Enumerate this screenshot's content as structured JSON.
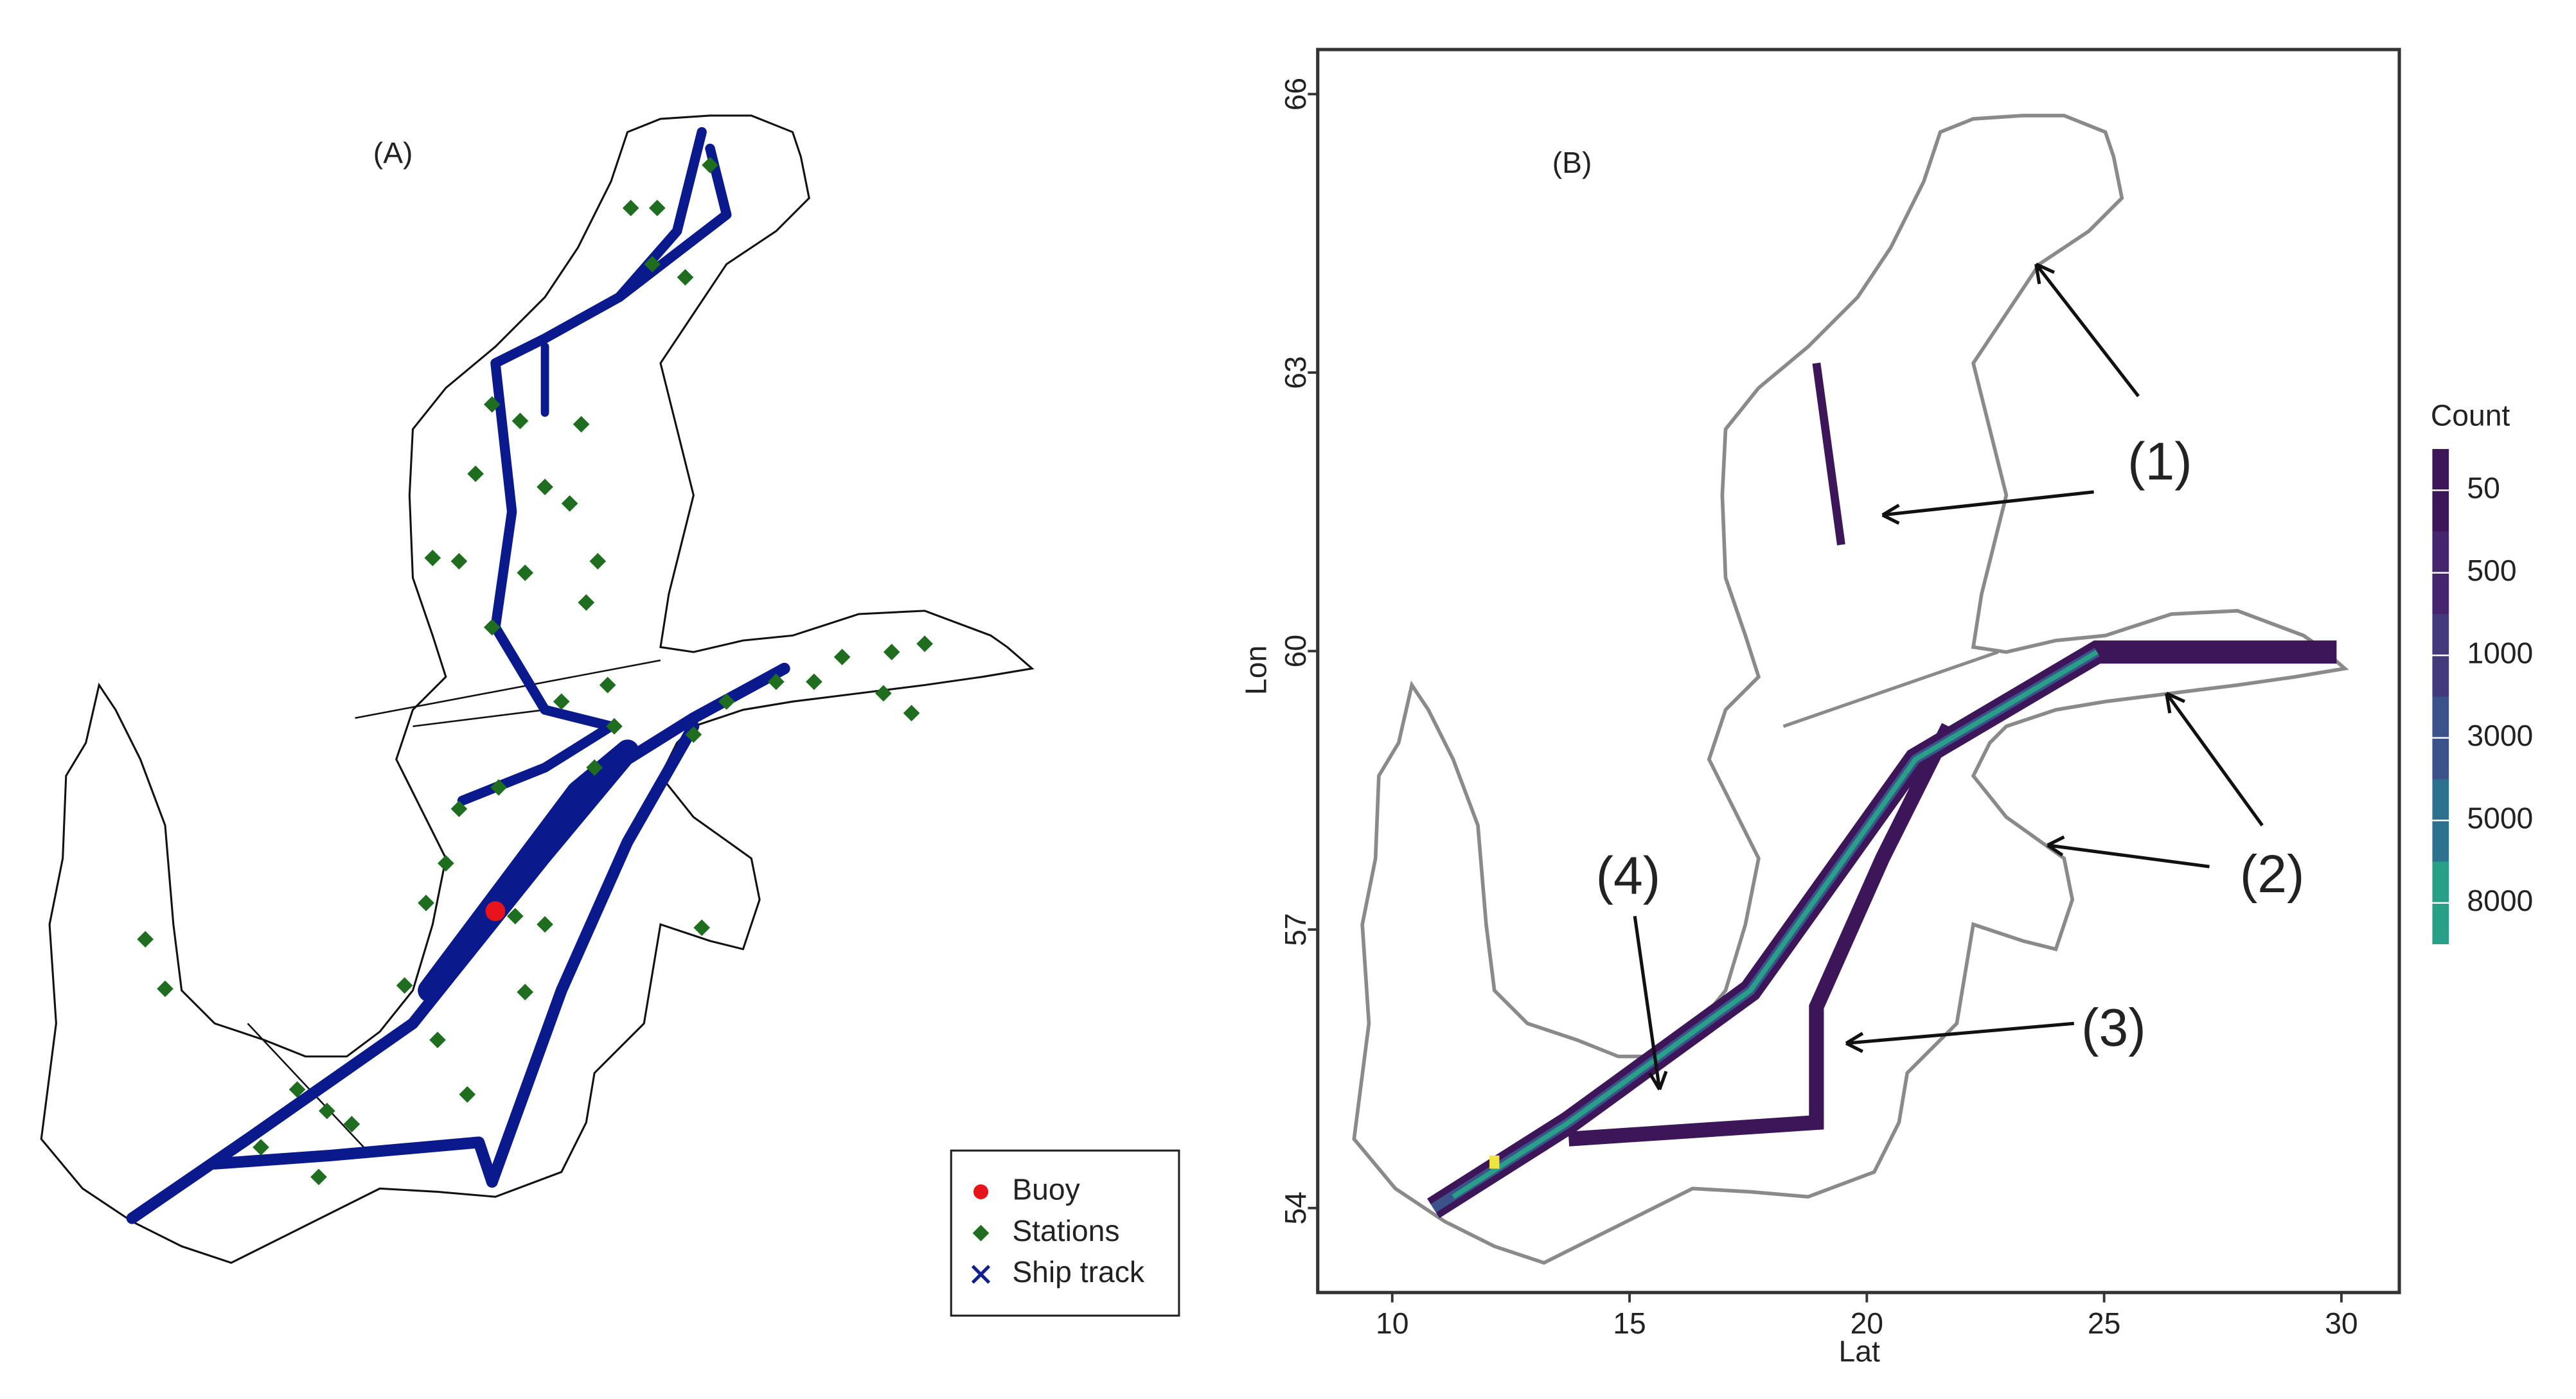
{
  "panel_a": {
    "label": "(A)",
    "legend": [
      "Buoy",
      "Stations",
      "Ship track"
    ],
    "legend_colors": [
      "#e8141c",
      "#1f6e1f",
      "#12208c"
    ]
  },
  "chart_data": {
    "type": "heatmap",
    "label": "(B)",
    "xlabel": "Lat",
    "ylabel": "Lon",
    "xlim": [
      8.43,
      31.22
    ],
    "ylim": [
      53.09,
      66.48
    ],
    "xticks": [
      10,
      15,
      20,
      25,
      30
    ],
    "yticks": [
      54,
      57,
      60,
      63,
      66
    ],
    "colorbar": {
      "title": "Count",
      "ticks": [
        50,
        500,
        1000,
        3000,
        5000,
        8000
      ],
      "colors": [
        "#3d1559",
        "#45266e",
        "#433a7c",
        "#3b528b",
        "#2c718e",
        "#27a087"
      ]
    },
    "annotations": [
      "(1)",
      "(2)",
      "(3)",
      "(4)"
    ]
  }
}
